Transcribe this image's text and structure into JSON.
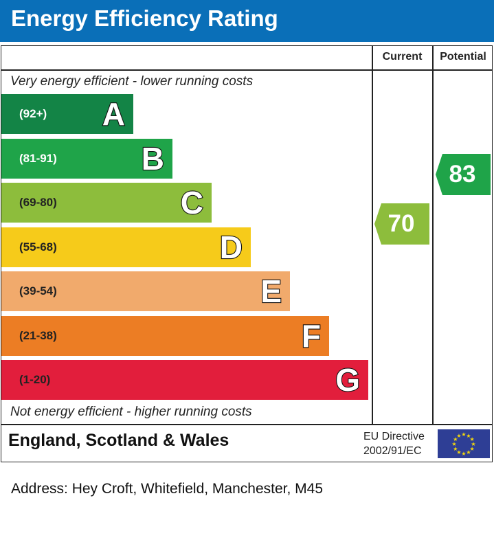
{
  "header": {
    "title": "Energy Efficiency Rating",
    "color": "#0a6fb8"
  },
  "columns": {
    "current": "Current",
    "potential": "Potential"
  },
  "notes": {
    "top": "Very energy efficient - lower running costs",
    "bottom": "Not energy efficient - higher running costs"
  },
  "chart_data": {
    "type": "bar",
    "title": "Energy Efficiency Rating",
    "bands": [
      {
        "label": "A",
        "range": "(92+)",
        "color": "#138446",
        "text_color": "#ffffff"
      },
      {
        "label": "B",
        "range": "(81-91)",
        "color": "#1fa449",
        "text_color": "#ffffff"
      },
      {
        "label": "C",
        "range": "(69-80)",
        "color": "#8dbd3c",
        "text_color": "#222222"
      },
      {
        "label": "D",
        "range": "(55-68)",
        "color": "#f6cb1a",
        "text_color": "#222222"
      },
      {
        "label": "E",
        "range": "(39-54)",
        "color": "#f1aa6c",
        "text_color": "#222222"
      },
      {
        "label": "F",
        "range": "(21-38)",
        "color": "#ec7d24",
        "text_color": "#222222"
      },
      {
        "label": "G",
        "range": "(1-20)",
        "color": "#e21e3c",
        "text_color": "#222222"
      }
    ],
    "current": {
      "value": 70,
      "color": "#8dbd3c"
    },
    "potential": {
      "value": 83,
      "color": "#1fa449"
    }
  },
  "footer": {
    "region": "England, Scotland & Wales",
    "directive_line1": "EU Directive",
    "directive_line2": "2002/91/EC"
  },
  "address": "Address: Hey Croft, Whitefield, Manchester, M45"
}
